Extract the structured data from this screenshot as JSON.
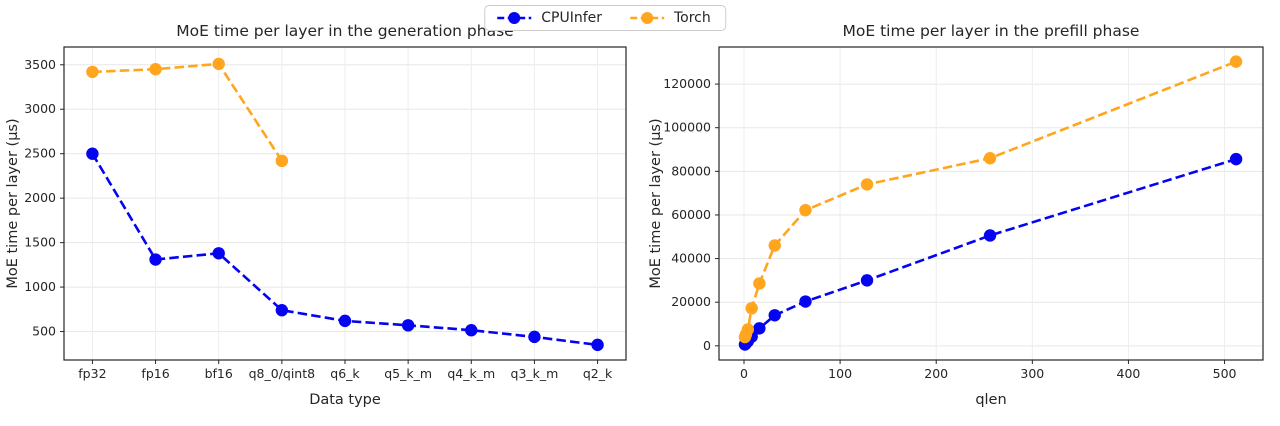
{
  "legend": {
    "items": [
      {
        "id": "cpuinfer",
        "label": "CPUInfer",
        "color": "#0404f0"
      },
      {
        "id": "torch",
        "label": "Torch",
        "color": "#ffa51e"
      }
    ]
  },
  "chart_data": [
    {
      "type": "line",
      "title": "MoE time per layer in the generation phase",
      "xlabel": "Data type",
      "ylabel": "MoE time per layer (μs)",
      "categories": [
        "fp32",
        "fp16",
        "bf16",
        "q8_0/qint8",
        "q6_k",
        "q5_k_m",
        "q4_k_m",
        "q3_k_m",
        "q2_k"
      ],
      "yticks": [
        500,
        1000,
        1500,
        2000,
        2500,
        3000,
        3500
      ],
      "ylim": [
        180,
        3700
      ],
      "grid": true,
      "legend_position": "figure-top-center",
      "line_style": "dashed",
      "series": [
        {
          "name": "CPUInfer",
          "color": "#0404f0",
          "values": [
            2500,
            1310,
            1380,
            740,
            620,
            570,
            515,
            440,
            350
          ]
        },
        {
          "name": "Torch",
          "color": "#ffa51e",
          "values": [
            3420,
            3450,
            3510,
            2420,
            null,
            null,
            null,
            null,
            null
          ]
        }
      ]
    },
    {
      "type": "line",
      "title": "MoE time per layer in the prefill phase",
      "xlabel": "qlen",
      "ylabel": "MoE time per layer (μs)",
      "xticks": [
        0,
        100,
        200,
        300,
        400,
        500
      ],
      "xlim": [
        -26,
        540
      ],
      "yticks": [
        0,
        20000,
        40000,
        60000,
        80000,
        100000,
        120000
      ],
      "ylim": [
        -6500,
        137000
      ],
      "grid": true,
      "line_style": "dashed",
      "series": [
        {
          "name": "CPUInfer",
          "color": "#0404f0",
          "x": [
            1,
            2,
            4,
            8,
            16,
            32,
            64,
            128,
            256,
            512
          ],
          "values": [
            600,
            1100,
            2100,
            4200,
            8000,
            14000,
            20300,
            30000,
            50600,
            85600
          ]
        },
        {
          "name": "Torch",
          "color": "#ffa51e",
          "x": [
            1,
            2,
            4,
            8,
            16,
            32,
            64,
            128,
            256,
            512
          ],
          "values": [
            4000,
            5200,
            7500,
            17200,
            28600,
            46000,
            62200,
            74000,
            86000,
            130300
          ]
        }
      ]
    }
  ]
}
